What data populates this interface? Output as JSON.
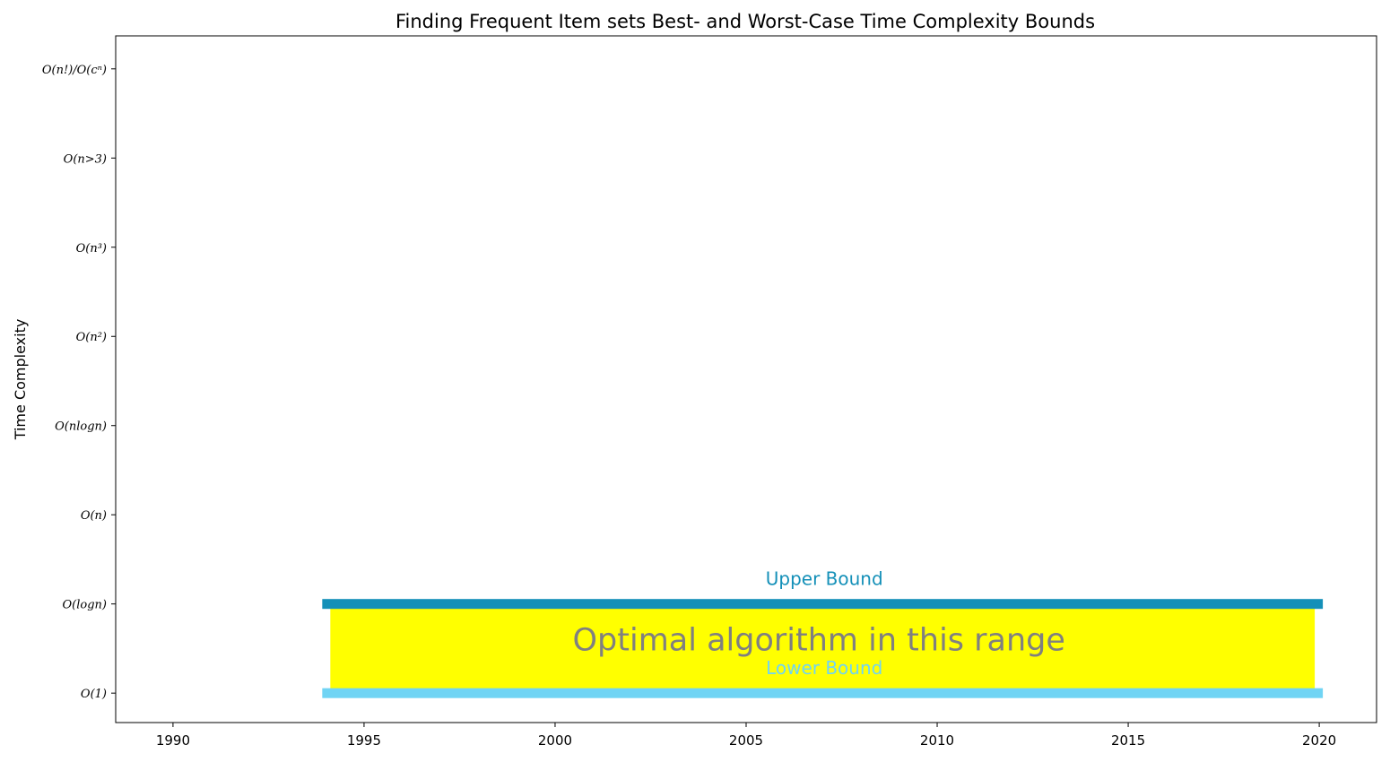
{
  "chart_data": {
    "type": "bar",
    "title": "Finding Frequent Item sets Best- and Worst-Case Time Complexity Bounds",
    "xlabel": "",
    "ylabel": "Time Complexity",
    "xlim": [
      1988.5,
      2021.5
    ],
    "ylim": [
      -0.33,
      7.37
    ],
    "x_ticks": [
      1990,
      1995,
      2000,
      2005,
      2010,
      2015,
      2020
    ],
    "y_ticks": [
      {
        "value": 0,
        "label": "O(1)"
      },
      {
        "value": 1,
        "label": "O(logn)"
      },
      {
        "value": 2,
        "label": "O(n)"
      },
      {
        "value": 3,
        "label": "O(nlogn)"
      },
      {
        "value": 4,
        "label": "O(n²)"
      },
      {
        "value": 5,
        "label": "O(n³)"
      },
      {
        "value": 6,
        "label": "O(n>3)"
      },
      {
        "value": 7,
        "label": "O(n!)/O(cⁿ)"
      }
    ],
    "grid": false,
    "series": [
      {
        "name": "Upper Bound",
        "x_start": 1994,
        "x_end": 2020,
        "value": 1,
        "color": "#1490b8"
      },
      {
        "name": "Lower Bound",
        "x_start": 1994,
        "x_end": 2020,
        "value": 0,
        "color": "#70d4f4"
      }
    ],
    "optimal_region": {
      "label": "Optimal algorithm in this range",
      "x_start": 1994,
      "x_end": 2020,
      "y_start": 0,
      "y_end": 1,
      "color": "#ffff00",
      "text_color": "#808080"
    }
  }
}
